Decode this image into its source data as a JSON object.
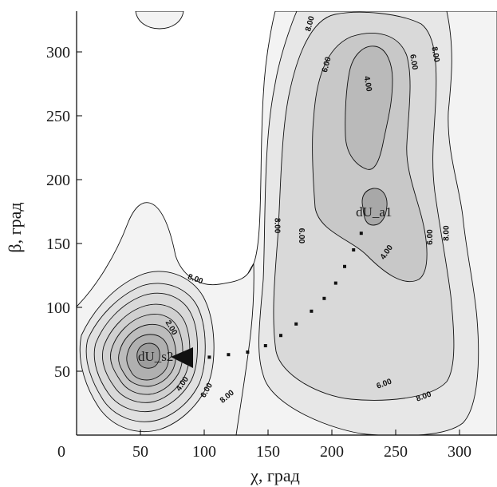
{
  "chart_data": {
    "type": "contour",
    "title": "",
    "xlabel": "χ, град",
    "ylabel": "β, град",
    "xlim": [
      0,
      330
    ],
    "ylim": [
      0,
      330
    ],
    "origin_label": "0",
    "x_ticks": [
      50,
      100,
      150,
      200,
      250,
      300
    ],
    "y_ticks": [
      50,
      100,
      150,
      200,
      250,
      300
    ],
    "contour_levels": [
      2,
      4,
      6,
      8,
      10,
      12
    ],
    "minima": [
      {
        "name": "dU_s2",
        "x": 62,
        "y": 62
      },
      {
        "name": "dU_a1",
        "x": 233,
        "y": 175
      }
    ],
    "contour_labels": [
      {
        "text": "8.00",
        "x": 183,
        "y": 322,
        "angle": -75
      },
      {
        "text": "6.00",
        "x": 196,
        "y": 290,
        "angle": -75
      },
      {
        "text": "4.00",
        "x": 228,
        "y": 275,
        "angle": 80
      },
      {
        "text": "6.00",
        "x": 264,
        "y": 292,
        "angle": 80
      },
      {
        "text": "8.00",
        "x": 281,
        "y": 298,
        "angle": 80
      },
      {
        "text": "8.00",
        "x": 157,
        "y": 164,
        "angle": 90
      },
      {
        "text": "6.00",
        "x": 176,
        "y": 156,
        "angle": 90
      },
      {
        "text": "4.00",
        "x": 243,
        "y": 143,
        "angle": -55
      },
      {
        "text": "6.00",
        "x": 277,
        "y": 155,
        "angle": -90
      },
      {
        "text": "8.00",
        "x": 290,
        "y": 158,
        "angle": -90
      },
      {
        "text": "8.00",
        "x": 93,
        "y": 122,
        "angle": 20
      },
      {
        "text": "2.00",
        "x": 74,
        "y": 84,
        "angle": 60
      },
      {
        "text": "4.00",
        "x": 83,
        "y": 40,
        "angle": -55
      },
      {
        "text": "6.00",
        "x": 102,
        "y": 35,
        "angle": -60
      },
      {
        "text": "8.00",
        "x": 118,
        "y": 30,
        "angle": -40
      },
      {
        "text": "6.00",
        "x": 241,
        "y": 40,
        "angle": -20
      },
      {
        "text": "8.00",
        "x": 272,
        "y": 30,
        "angle": -20
      }
    ],
    "path_points": [
      {
        "x": 90,
        "y": 60
      },
      {
        "x": 104,
        "y": 61
      },
      {
        "x": 119,
        "y": 63
      },
      {
        "x": 134,
        "y": 65
      },
      {
        "x": 148,
        "y": 70
      },
      {
        "x": 160,
        "y": 78
      },
      {
        "x": 172,
        "y": 87
      },
      {
        "x": 184,
        "y": 97
      },
      {
        "x": 194,
        "y": 107
      },
      {
        "x": 203,
        "y": 119
      },
      {
        "x": 210,
        "y": 132
      },
      {
        "x": 217,
        "y": 145
      },
      {
        "x": 223,
        "y": 158
      }
    ]
  }
}
